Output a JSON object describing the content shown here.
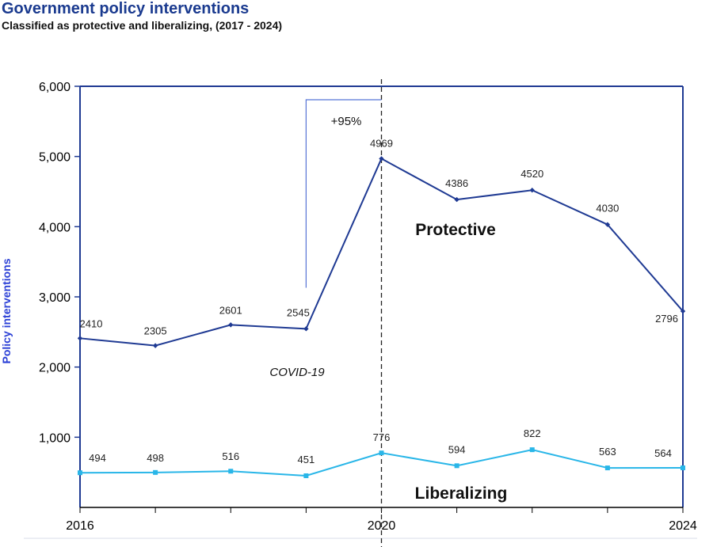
{
  "title": "Government policy interventions",
  "subtitle": "Classified as protective and liberalizing, (2017 - 2024)",
  "chart_data": {
    "type": "line",
    "ylabel": "Policy interventions",
    "ylim": [
      0,
      6000
    ],
    "xlim": [
      2016,
      2024
    ],
    "y_ticks": [
      {
        "value": 1000,
        "label": "1,000"
      },
      {
        "value": 2000,
        "label": "2,000"
      },
      {
        "value": 3000,
        "label": "3,000"
      },
      {
        "value": 4000,
        "label": "4,000"
      },
      {
        "value": 5000,
        "label": "5,000"
      },
      {
        "value": 6000,
        "label": "6,000"
      }
    ],
    "x_ticks": [
      {
        "value": 2016,
        "label": "2016"
      },
      {
        "value": 2020,
        "label": "2020"
      },
      {
        "value": 2024,
        "label": "2024"
      }
    ],
    "x": [
      2016,
      2017,
      2018,
      2019,
      2020,
      2021,
      2022,
      2023,
      2024
    ],
    "series": [
      {
        "name": "Protective",
        "color": "#1f3a93",
        "values": [
          2410,
          2305,
          2601,
          2545,
          4969,
          4386,
          4520,
          4030,
          2796
        ]
      },
      {
        "name": "Liberalizing",
        "color": "#29b6e8",
        "values": [
          494,
          498,
          516,
          451,
          776,
          594,
          822,
          563,
          564
        ]
      }
    ],
    "annotations": [
      {
        "text": "COVID-19",
        "style": "italic"
      },
      {
        "text": "+95%"
      }
    ],
    "reference_line": {
      "x": 2020,
      "style": "dashed"
    },
    "grid": false
  }
}
